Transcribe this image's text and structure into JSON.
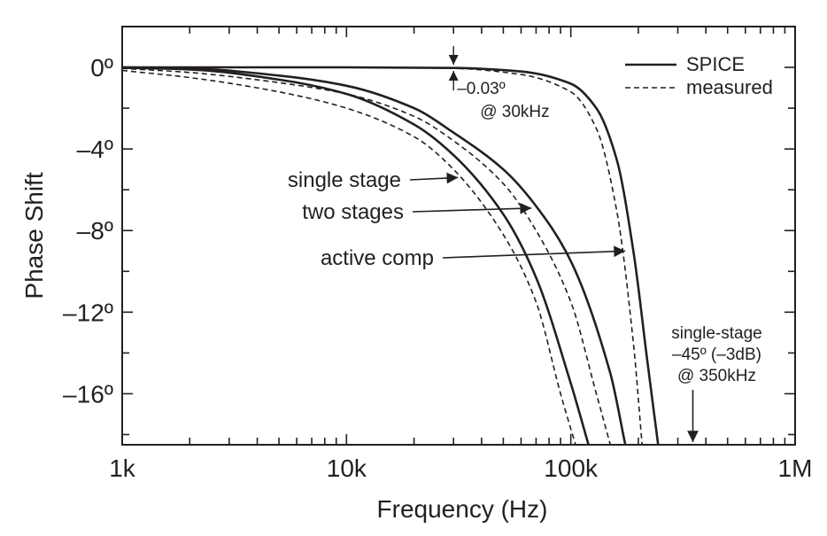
{
  "chart_data": {
    "type": "line",
    "xlabel": "Frequency  (Hz)",
    "ylabel": "Phase Shift",
    "x_scale": "log",
    "xlim": [
      1000,
      1000000
    ],
    "ylim": [
      -18.5,
      2
    ],
    "x_ticks": [
      {
        "value": 1000,
        "label": "1k"
      },
      {
        "value": 10000,
        "label": "10k"
      },
      {
        "value": 100000,
        "label": "100k"
      },
      {
        "value": 1000000,
        "label": "1M"
      }
    ],
    "y_ticks": [
      {
        "value": 0,
        "label": "0º"
      },
      {
        "value": -4,
        "label": "–4º"
      },
      {
        "value": -8,
        "label": "–8º"
      },
      {
        "value": -12,
        "label": "–12º"
      },
      {
        "value": -16,
        "label": "–16º"
      }
    ],
    "legend": {
      "position": "top-right",
      "items": [
        {
          "label": "SPICE",
          "style": "solid"
        },
        {
          "label": "measured",
          "style": "dashed"
        }
      ]
    },
    "series": [
      {
        "name": "single stage",
        "source": "SPICE",
        "style": "solid",
        "x": [
          1000,
          2000,
          5000,
          10000,
          20000,
          30000,
          50000,
          70000,
          100000,
          120000
        ],
        "y": [
          -0.02,
          -0.1,
          -0.6,
          -1.3,
          -2.8,
          -4.3,
          -7.2,
          -10.3,
          -15.5,
          -18.5
        ]
      },
      {
        "name": "single stage",
        "source": "measured",
        "style": "dashed",
        "x": [
          1000,
          2000,
          5000,
          10000,
          20000,
          30000,
          50000,
          70000,
          90000,
          105000
        ],
        "y": [
          -0.15,
          -0.5,
          -1.2,
          -2.0,
          -3.4,
          -5.0,
          -8.2,
          -11.5,
          -16.0,
          -18.5
        ]
      },
      {
        "name": "two stages",
        "source": "SPICE",
        "style": "solid",
        "x": [
          1000,
          2000,
          5000,
          10000,
          20000,
          30000,
          50000,
          70000,
          100000,
          150000,
          175000
        ],
        "y": [
          0,
          -0.05,
          -0.4,
          -0.9,
          -2.0,
          -3.2,
          -5.0,
          -6.8,
          -9.5,
          -15.0,
          -18.5
        ]
      },
      {
        "name": "two stages",
        "source": "measured",
        "style": "dashed",
        "x": [
          1000,
          2000,
          5000,
          10000,
          20000,
          30000,
          50000,
          70000,
          100000,
          130000,
          150000
        ],
        "y": [
          -0.05,
          -0.25,
          -0.75,
          -1.3,
          -2.4,
          -3.6,
          -5.7,
          -8.0,
          -11.5,
          -16.0,
          -18.5
        ]
      },
      {
        "name": "active comp",
        "source": "SPICE",
        "style": "solid",
        "x": [
          1000,
          10000,
          30000,
          60000,
          100000,
          130000,
          160000,
          190000,
          220000,
          245000
        ],
        "y": [
          0,
          0,
          -0.03,
          -0.2,
          -0.8,
          -2.0,
          -4.5,
          -9.0,
          -14.5,
          -18.5
        ]
      },
      {
        "name": "active comp",
        "source": "measured",
        "style": "dashed",
        "x": [
          1000,
          10000,
          30000,
          60000,
          100000,
          130000,
          160000,
          190000,
          208000
        ],
        "y": [
          0,
          0,
          -0.05,
          -0.35,
          -1.2,
          -3.0,
          -7.0,
          -13.5,
          -18.5
        ]
      }
    ],
    "annotations": [
      {
        "id": "single_stage",
        "label": "single stage",
        "arrow_to": {
          "x": 32000,
          "y": -5.4
        }
      },
      {
        "id": "two_stages",
        "label": "two stages",
        "arrow_to": {
          "x": 68000,
          "y": -6.9
        }
      },
      {
        "id": "active_comp",
        "label": "active comp",
        "arrow_to": {
          "x": 178000,
          "y": -9.0
        }
      },
      {
        "id": "phase_note",
        "lines": [
          "–0.03º",
          "@ 30kHz"
        ],
        "marker_at": {
          "x": 30000,
          "y": 0
        }
      },
      {
        "id": "minus3db",
        "lines": [
          "single-stage",
          "–45º (–3dB)",
          "@ 350kHz"
        ],
        "arrow_to": {
          "x": 350000,
          "y": -18.5
        }
      }
    ],
    "grid": false,
    "line_color": "#231f20"
  }
}
